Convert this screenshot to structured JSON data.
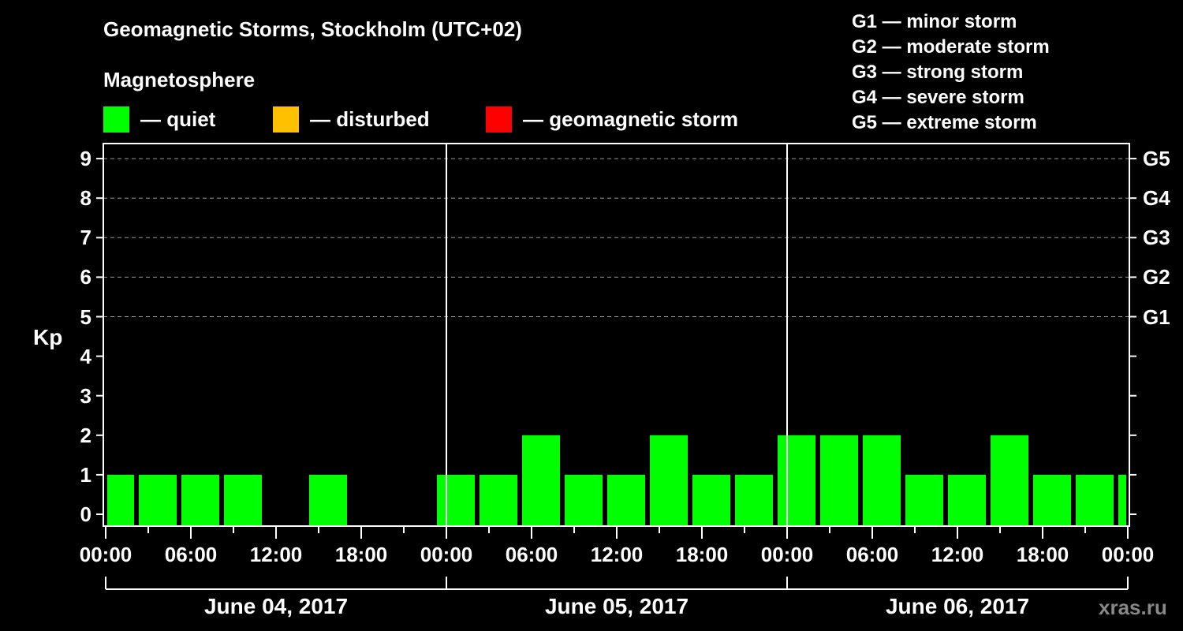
{
  "header": {
    "title": "Geomagnetic Storms, Stockholm (UTC+02)",
    "subtitle": "Magnetosphere"
  },
  "legend": [
    {
      "label": "— quiet",
      "color": "#00ff00"
    },
    {
      "label": "— disturbed",
      "color": "#ffc000"
    },
    {
      "label": "— geomagnetic storm",
      "color": "#ff0000"
    }
  ],
  "g_scale": [
    "G1 — minor storm",
    "G2 — moderate storm",
    "G3 — strong storm",
    "G4 — severe storm",
    "G5 — extreme storm"
  ],
  "axis": {
    "ylabel": "Kp",
    "yticks": [
      "0",
      "1",
      "2",
      "3",
      "4",
      "5",
      "6",
      "7",
      "8",
      "9"
    ],
    "g_ticks": [
      {
        "kp": 5,
        "label": "G1"
      },
      {
        "kp": 6,
        "label": "G2"
      },
      {
        "kp": 7,
        "label": "G3"
      },
      {
        "kp": 8,
        "label": "G4"
      },
      {
        "kp": 9,
        "label": "G5"
      }
    ],
    "xticks": [
      "00:00",
      "06:00",
      "12:00",
      "18:00",
      "00:00",
      "06:00",
      "12:00",
      "18:00",
      "00:00",
      "06:00",
      "12:00",
      "18:00",
      "00:00"
    ],
    "days": [
      "June 04, 2017",
      "June 05, 2017",
      "June 06, 2017"
    ]
  },
  "watermark": "xras.ru",
  "chart_data": {
    "type": "bar",
    "title": "Geomagnetic Storms, Stockholm (UTC+02)",
    "subtitle": "Magnetosphere",
    "xlabel": "",
    "ylabel": "Kp",
    "ylim": [
      0,
      9
    ],
    "grid": "dashed horizontal lines at Kp 5–9",
    "legend_position": "top",
    "interval_hours": 3,
    "categories": [
      "Jun 04 00:00",
      "Jun 04 03:00",
      "Jun 04 06:00",
      "Jun 04 09:00",
      "Jun 04 12:00",
      "Jun 04 15:00",
      "Jun 04 18:00",
      "Jun 04 21:00",
      "Jun 05 00:00",
      "Jun 05 03:00",
      "Jun 05 06:00",
      "Jun 05 09:00",
      "Jun 05 12:00",
      "Jun 05 15:00",
      "Jun 05 18:00",
      "Jun 05 21:00",
      "Jun 06 00:00",
      "Jun 06 03:00",
      "Jun 06 06:00",
      "Jun 06 09:00",
      "Jun 06 12:00",
      "Jun 06 15:00",
      "Jun 06 18:00",
      "Jun 06 21:00",
      "Jun 07 00:00"
    ],
    "values": [
      1,
      1,
      1,
      1,
      0,
      1,
      0,
      0,
      1,
      1,
      2,
      1,
      1,
      2,
      1,
      1,
      2,
      2,
      2,
      1,
      1,
      2,
      1,
      1,
      1
    ],
    "bar_color": "#00ff00",
    "status": "quiet"
  }
}
